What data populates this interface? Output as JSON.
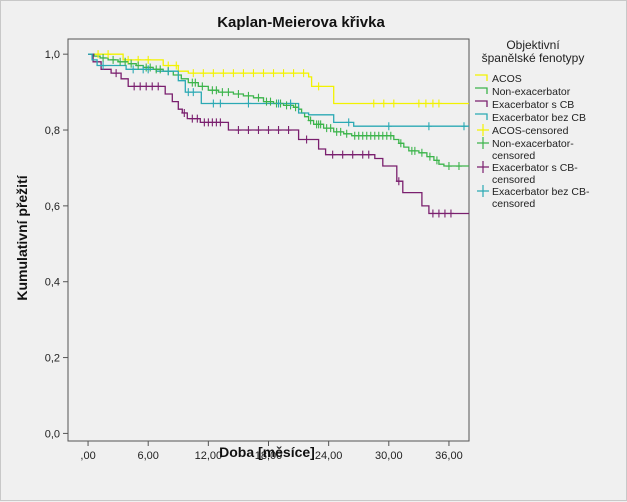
{
  "chart_data": {
    "type": "line",
    "step": true,
    "title": "Kaplan-Meierova křivka",
    "xlabel": "Doba [měsíce]",
    "ylabel": "Kumulativní přežití",
    "xlim": [
      -2,
      38
    ],
    "ylim": [
      -0.02,
      1.04
    ],
    "xticks": [
      0,
      6,
      12,
      18,
      24,
      30,
      36
    ],
    "xtick_labels": [
      ",00",
      "6,00",
      "12,00",
      "18,00",
      "24,00",
      "30,00",
      "36,00"
    ],
    "yticks": [
      0,
      0.2,
      0.4,
      0.6,
      0.8,
      1.0
    ],
    "ytick_labels": [
      "0,0",
      "0,2",
      "0,4",
      "0,6",
      "0,8",
      "1,0"
    ],
    "legend": {
      "title": [
        "Objektivní",
        "španělské fenotypy"
      ],
      "position": "right",
      "entries": [
        {
          "label": [
            "ACOS"
          ],
          "color": "#f2f200",
          "marker": "step"
        },
        {
          "label": [
            "Non-exacerbator"
          ],
          "color": "#3cb44b",
          "marker": "step"
        },
        {
          "label": [
            "Exacerbator s CB"
          ],
          "color": "#7a1f6e",
          "marker": "step"
        },
        {
          "label": [
            "Exacerbator bez CB"
          ],
          "color": "#2ba9b4",
          "marker": "step"
        },
        {
          "label": [
            "ACOS-censored"
          ],
          "color": "#f2f200",
          "marker": "plus"
        },
        {
          "label": [
            "Non-exacerbator-",
            "censored"
          ],
          "color": "#3cb44b",
          "marker": "plus"
        },
        {
          "label": [
            "Exacerbator s CB-",
            "censored"
          ],
          "color": "#7a1f6e",
          "marker": "plus"
        },
        {
          "label": [
            "Exacerbator bez CB-",
            "censored"
          ],
          "color": "#2ba9b4",
          "marker": "plus"
        }
      ]
    },
    "series": [
      {
        "name": "ACOS",
        "color": "#f2f200",
        "steps": [
          [
            0,
            1.0
          ],
          [
            3.5,
            0.985
          ],
          [
            7.5,
            0.97
          ],
          [
            9,
            0.955
          ],
          [
            10,
            0.95
          ],
          [
            22,
            0.94
          ],
          [
            22.3,
            0.915
          ],
          [
            24.5,
            0.87
          ],
          [
            38,
            0.87
          ]
        ],
        "censored": [
          [
            1,
            1.0
          ],
          [
            2,
            1.0
          ],
          [
            4,
            0.985
          ],
          [
            5,
            0.985
          ],
          [
            6,
            0.985
          ],
          [
            8,
            0.97
          ],
          [
            8.8,
            0.97
          ],
          [
            10.5,
            0.95
          ],
          [
            11.5,
            0.95
          ],
          [
            12.5,
            0.95
          ],
          [
            13.5,
            0.95
          ],
          [
            14.5,
            0.95
          ],
          [
            15.5,
            0.95
          ],
          [
            16.5,
            0.95
          ],
          [
            17.5,
            0.95
          ],
          [
            18.5,
            0.95
          ],
          [
            19.5,
            0.95
          ],
          [
            20.5,
            0.95
          ],
          [
            21.5,
            0.95
          ],
          [
            23,
            0.915
          ],
          [
            28.5,
            0.87
          ],
          [
            29.5,
            0.87
          ],
          [
            30.5,
            0.87
          ],
          [
            33,
            0.87
          ],
          [
            33.7,
            0.87
          ],
          [
            34.4,
            0.87
          ],
          [
            35,
            0.87
          ]
        ]
      },
      {
        "name": "Non-exacerbator",
        "color": "#3cb44b",
        "steps": [
          [
            0,
            1.0
          ],
          [
            0.6,
            0.995
          ],
          [
            1.2,
            0.99
          ],
          [
            2.0,
            0.985
          ],
          [
            3.0,
            0.98
          ],
          [
            4.0,
            0.975
          ],
          [
            4.8,
            0.97
          ],
          [
            5.5,
            0.965
          ],
          [
            6.5,
            0.96
          ],
          [
            7.5,
            0.955
          ],
          [
            8.5,
            0.945
          ],
          [
            9.3,
            0.935
          ],
          [
            10.0,
            0.925
          ],
          [
            11.0,
            0.915
          ],
          [
            12.0,
            0.905
          ],
          [
            13.0,
            0.9
          ],
          [
            14.5,
            0.895
          ],
          [
            15.5,
            0.89
          ],
          [
            16.5,
            0.885
          ],
          [
            17.5,
            0.875
          ],
          [
            18.5,
            0.87
          ],
          [
            19.5,
            0.865
          ],
          [
            20.5,
            0.86
          ],
          [
            21.0,
            0.855
          ],
          [
            21.3,
            0.845
          ],
          [
            21.6,
            0.835
          ],
          [
            22.0,
            0.825
          ],
          [
            22.5,
            0.815
          ],
          [
            23.5,
            0.805
          ],
          [
            24.5,
            0.795
          ],
          [
            25.5,
            0.79
          ],
          [
            26.3,
            0.785
          ],
          [
            30.5,
            0.775
          ],
          [
            31.0,
            0.765
          ],
          [
            31.5,
            0.755
          ],
          [
            32.0,
            0.745
          ],
          [
            33.0,
            0.74
          ],
          [
            33.8,
            0.73
          ],
          [
            34.5,
            0.72
          ],
          [
            35.0,
            0.71
          ],
          [
            35.5,
            0.705
          ],
          [
            38,
            0.705
          ]
        ],
        "censored": [
          [
            1.5,
            0.99
          ],
          [
            2.5,
            0.985
          ],
          [
            3.2,
            0.98
          ],
          [
            3.7,
            0.98
          ],
          [
            4.3,
            0.975
          ],
          [
            5.0,
            0.97
          ],
          [
            5.8,
            0.965
          ],
          [
            6.2,
            0.965
          ],
          [
            6.8,
            0.96
          ],
          [
            7.2,
            0.96
          ],
          [
            8.0,
            0.955
          ],
          [
            10.4,
            0.925
          ],
          [
            10.7,
            0.925
          ],
          [
            11.4,
            0.915
          ],
          [
            12.4,
            0.905
          ],
          [
            12.8,
            0.905
          ],
          [
            13.4,
            0.9
          ],
          [
            14.0,
            0.9
          ],
          [
            15.0,
            0.895
          ],
          [
            16.0,
            0.89
          ],
          [
            17.0,
            0.885
          ],
          [
            17.8,
            0.875
          ],
          [
            18.2,
            0.875
          ],
          [
            18.8,
            0.87
          ],
          [
            19.2,
            0.87
          ],
          [
            19.8,
            0.865
          ],
          [
            20.2,
            0.865
          ],
          [
            20.7,
            0.86
          ],
          [
            22.2,
            0.825
          ],
          [
            22.8,
            0.815
          ],
          [
            23.0,
            0.815
          ],
          [
            23.2,
            0.815
          ],
          [
            23.8,
            0.805
          ],
          [
            24.2,
            0.805
          ],
          [
            24.8,
            0.795
          ],
          [
            25.2,
            0.795
          ],
          [
            25.8,
            0.79
          ],
          [
            26.6,
            0.785
          ],
          [
            27.0,
            0.785
          ],
          [
            27.4,
            0.785
          ],
          [
            27.8,
            0.785
          ],
          [
            28.2,
            0.785
          ],
          [
            28.6,
            0.785
          ],
          [
            29.0,
            0.785
          ],
          [
            29.4,
            0.785
          ],
          [
            29.8,
            0.785
          ],
          [
            30.2,
            0.785
          ],
          [
            31.2,
            0.765
          ],
          [
            32.3,
            0.745
          ],
          [
            32.6,
            0.745
          ],
          [
            33.3,
            0.74
          ],
          [
            34.1,
            0.73
          ],
          [
            34.8,
            0.72
          ],
          [
            36.0,
            0.705
          ],
          [
            37.0,
            0.705
          ]
        ]
      },
      {
        "name": "Exacerbator s CB",
        "color": "#7a1f6e",
        "steps": [
          [
            0,
            1.0
          ],
          [
            0.5,
            0.98
          ],
          [
            1.3,
            0.96
          ],
          [
            2.3,
            0.95
          ],
          [
            3.3,
            0.935
          ],
          [
            4.0,
            0.915
          ],
          [
            7.7,
            0.895
          ],
          [
            8.4,
            0.875
          ],
          [
            9.0,
            0.855
          ],
          [
            9.4,
            0.845
          ],
          [
            9.9,
            0.83
          ],
          [
            11.2,
            0.82
          ],
          [
            14.0,
            0.8
          ],
          [
            21.0,
            0.775
          ],
          [
            23.0,
            0.75
          ],
          [
            23.7,
            0.735
          ],
          [
            28.6,
            0.725
          ],
          [
            29.4,
            0.705
          ],
          [
            30.8,
            0.665
          ],
          [
            31.4,
            0.635
          ],
          [
            33.3,
            0.6
          ],
          [
            34.0,
            0.58
          ],
          [
            38,
            0.58
          ]
        ],
        "censored": [
          [
            2.8,
            0.95
          ],
          [
            4.6,
            0.915
          ],
          [
            5.2,
            0.915
          ],
          [
            5.8,
            0.915
          ],
          [
            6.4,
            0.915
          ],
          [
            7.0,
            0.915
          ],
          [
            9.6,
            0.845
          ],
          [
            10.4,
            0.83
          ],
          [
            10.9,
            0.83
          ],
          [
            11.6,
            0.82
          ],
          [
            12.0,
            0.82
          ],
          [
            12.4,
            0.82
          ],
          [
            12.8,
            0.82
          ],
          [
            13.2,
            0.82
          ],
          [
            15.0,
            0.8
          ],
          [
            16.0,
            0.8
          ],
          [
            17.0,
            0.8
          ],
          [
            18.0,
            0.8
          ],
          [
            19.0,
            0.8
          ],
          [
            20.0,
            0.8
          ],
          [
            21.8,
            0.775
          ],
          [
            24.4,
            0.735
          ],
          [
            25.4,
            0.735
          ],
          [
            26.4,
            0.735
          ],
          [
            27.4,
            0.735
          ],
          [
            28.0,
            0.735
          ],
          [
            31.0,
            0.665
          ],
          [
            34.4,
            0.58
          ],
          [
            35.0,
            0.58
          ],
          [
            35.6,
            0.58
          ],
          [
            36.2,
            0.58
          ]
        ]
      },
      {
        "name": "Exacerbator bez CB",
        "color": "#2ba9b4",
        "steps": [
          [
            0,
            1.0
          ],
          [
            0.4,
            0.985
          ],
          [
            0.9,
            0.97
          ],
          [
            3.8,
            0.96
          ],
          [
            6.8,
            0.955
          ],
          [
            9.0,
            0.93
          ],
          [
            9.7,
            0.9
          ],
          [
            11.3,
            0.87
          ],
          [
            21.0,
            0.845
          ],
          [
            22.0,
            0.84
          ],
          [
            24.5,
            0.82
          ],
          [
            26.5,
            0.81
          ],
          [
            38,
            0.81
          ]
        ],
        "censored": [
          [
            1.5,
            0.97
          ],
          [
            4.5,
            0.96
          ],
          [
            5.5,
            0.96
          ],
          [
            6.0,
            0.96
          ],
          [
            8.0,
            0.955
          ],
          [
            10.0,
            0.9
          ],
          [
            10.5,
            0.9
          ],
          [
            12.5,
            0.87
          ],
          [
            13.2,
            0.87
          ],
          [
            16.0,
            0.87
          ],
          [
            19.0,
            0.87
          ],
          [
            20.2,
            0.87
          ],
          [
            26.0,
            0.82
          ],
          [
            30.0,
            0.81
          ],
          [
            34.0,
            0.81
          ],
          [
            37.5,
            0.81
          ]
        ]
      }
    ]
  }
}
